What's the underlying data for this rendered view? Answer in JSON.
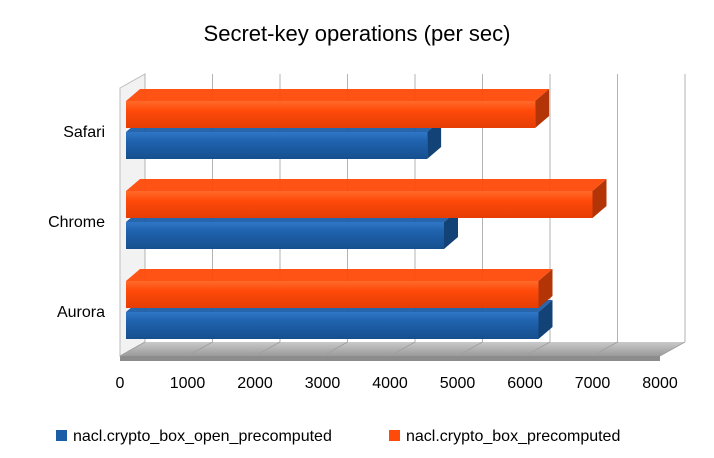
{
  "chart_data": {
    "type": "bar",
    "orientation": "horizontal",
    "style": "3d",
    "title": "Secret-key operations (per sec)",
    "xlabel": "",
    "ylabel": "",
    "categories": [
      "Aurora",
      "Chrome",
      "Safari"
    ],
    "series": [
      {
        "name": "nacl.crypto_box_open_precomputed",
        "color": "#1b5ea8",
        "values": [
          6200,
          4800,
          4550
        ]
      },
      {
        "name": "nacl.crypto_box_precomputed",
        "color": "#ff4a0a",
        "values": [
          6200,
          7000,
          6150
        ]
      }
    ],
    "xlim": [
      0,
      8000
    ],
    "xticks": [
      "0",
      "1000",
      "2000",
      "3000",
      "4000",
      "5000",
      "6000",
      "7000",
      "8000"
    ],
    "grid": true,
    "legend": "bottom"
  }
}
